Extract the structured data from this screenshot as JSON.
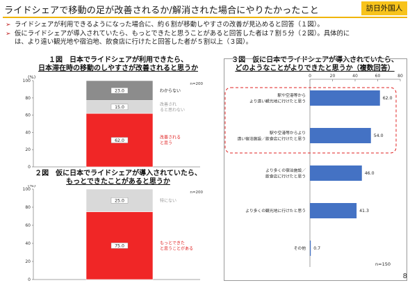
{
  "header": {
    "title": "ライドシェアで移動の足が改善されるか/解消された場合にやりたかったこと",
    "badge": "訪日外国人"
  },
  "bullets": [
    {
      "marker": "➢",
      "text": "ライドシェアが利用できるようになった場合に、約６割が移動しやすさの改善が見込めると回答（１図）。"
    },
    {
      "marker": "➢",
      "text": "仮にライドシェアが導入されていたら、もっとできたと思うことがあると回答した者は７割５分（２図）。具体的に",
      "cont": "は、より遠い観光地や宿泊地、飲食店に行けたと回答した者が５割以上（３図）。"
    }
  ],
  "page_number": "8",
  "chart_data": [
    {
      "type": "bar",
      "stacked": true,
      "title_line1": "１図　日本でライドシェアが利用できたら、",
      "title_line2": "日本滞在時の移動のしやすさが改善されると思うか",
      "ylabel": "(%)",
      "n_label": "n=200",
      "ylim": [
        0,
        100
      ],
      "yticks": [
        0,
        20,
        40,
        60,
        80,
        100
      ],
      "series": [
        {
          "name": "改善される\nと思う",
          "value": 62.0,
          "label": "62.0",
          "color": "#f02626",
          "label_color": "#e02020"
        },
        {
          "name": "改善され\nると思わない",
          "value": 15.0,
          "label": "15.0",
          "color": "#d9d9d9",
          "label_color": "#999999"
        },
        {
          "name": "わからない",
          "value": 23.0,
          "label": "23.0",
          "color": "#8c8c8c",
          "label_color": "#222222"
        }
      ]
    },
    {
      "type": "bar",
      "stacked": true,
      "title_line1": "２図　仮に日本でライドシェアが導入されていたら、",
      "title_line2": "もっとできたことがあると思うか",
      "ylabel": "(%)",
      "n_label": "n=200",
      "ylim": [
        0,
        100
      ],
      "yticks": [
        0,
        20,
        40,
        60,
        80,
        100
      ],
      "series": [
        {
          "name": "もっとできた\nと思うことがある",
          "value": 75.0,
          "label": "75.0",
          "color": "#f02626",
          "label_color": "#e02020"
        },
        {
          "name": "特にない",
          "value": 25.0,
          "label": "25.0",
          "color": "#d9d9d9",
          "label_color": "#999999"
        }
      ]
    },
    {
      "type": "bar",
      "orientation": "horizontal",
      "title_line1": "３図　仮に日本でライドシェアが導入されていたら、",
      "title_line2": "どのようなことがよりできたと思うか（複数回答）",
      "xlim": [
        0,
        80
      ],
      "xticks": [
        0,
        20,
        40,
        60,
        80
      ],
      "n_label": "n=150",
      "bar_color": "#4472c4",
      "highlight_count": 2,
      "categories": [
        "駅や空港等から\nより遠い観光地に行けたと思う",
        "駅や空港等からより\n遠い宿泊施設／飲食店に行けたと思う",
        "より多くの宿泊施設／\n飲食店に行けたと思う",
        "より多くの観光地に行けたと思う",
        "その他"
      ],
      "values": [
        62.0,
        54.0,
        46.0,
        41.3,
        0.7
      ],
      "labels": [
        "62.0",
        "54.0",
        "46.0",
        "41.3",
        "0.7"
      ]
    }
  ]
}
